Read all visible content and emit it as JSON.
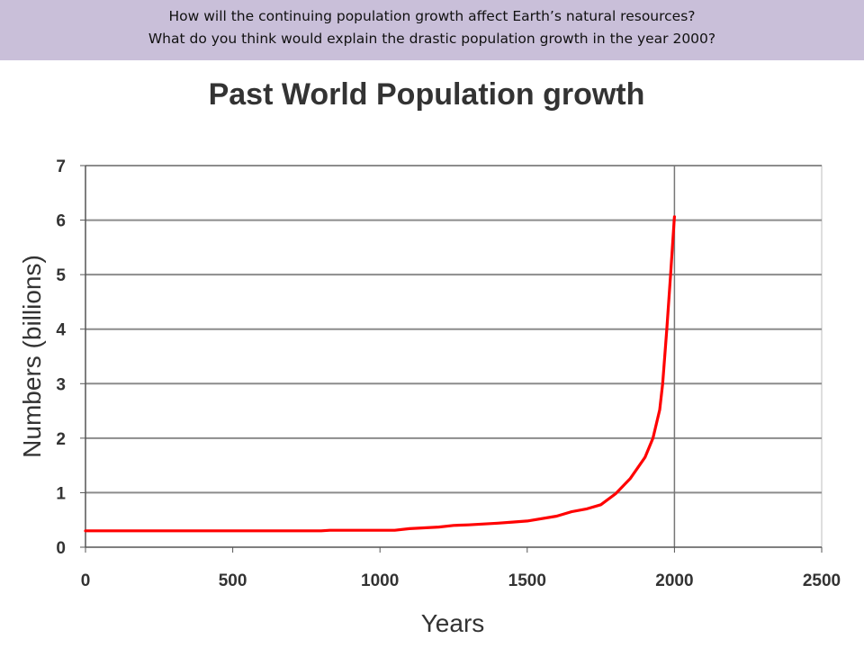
{
  "banner": {
    "question_1": "How will the continuing population growth affect Earth’s natural resources?",
    "question_2": "What do you think would explain the drastic population growth in the year 2000?"
  },
  "colors": {
    "banner_background": "#c9bfd9",
    "series_line": "#ff0000",
    "gridline": "#8c8c8c",
    "axis": "#555555",
    "text": "#333333"
  },
  "chart_data": {
    "type": "line",
    "title": "Past World Population growth",
    "xlabel": "Years",
    "ylabel": "Numbers (billions)",
    "xlim": [
      0,
      2500
    ],
    "ylim": [
      0,
      7
    ],
    "x_ticks": [
      0,
      500,
      1000,
      1500,
      2000,
      2500
    ],
    "y_ticks": [
      0,
      1,
      2,
      3,
      4,
      5,
      6,
      7
    ],
    "grid": {
      "horizontal": true,
      "vertical": false
    },
    "reference_lines": [
      {
        "orientation": "vertical",
        "x": 2000
      }
    ],
    "legend": "none",
    "series": [
      {
        "color": "#ff0000",
        "points": [
          [
            0,
            0.3
          ],
          [
            500,
            0.3
          ],
          [
            800,
            0.3
          ],
          [
            830,
            0.31
          ],
          [
            1050,
            0.31
          ],
          [
            1100,
            0.34
          ],
          [
            1200,
            0.37
          ],
          [
            1250,
            0.4
          ],
          [
            1300,
            0.41
          ],
          [
            1400,
            0.44
          ],
          [
            1450,
            0.46
          ],
          [
            1500,
            0.48
          ],
          [
            1600,
            0.57
          ],
          [
            1650,
            0.65
          ],
          [
            1700,
            0.7
          ],
          [
            1750,
            0.78
          ],
          [
            1800,
            0.98
          ],
          [
            1850,
            1.26
          ],
          [
            1900,
            1.65
          ],
          [
            1927,
            2.0
          ],
          [
            1950,
            2.52
          ],
          [
            1960,
            3.0
          ],
          [
            1974,
            4.0
          ],
          [
            1987,
            5.0
          ],
          [
            1999,
            6.0
          ],
          [
            2000,
            6.06
          ]
        ]
      }
    ]
  }
}
